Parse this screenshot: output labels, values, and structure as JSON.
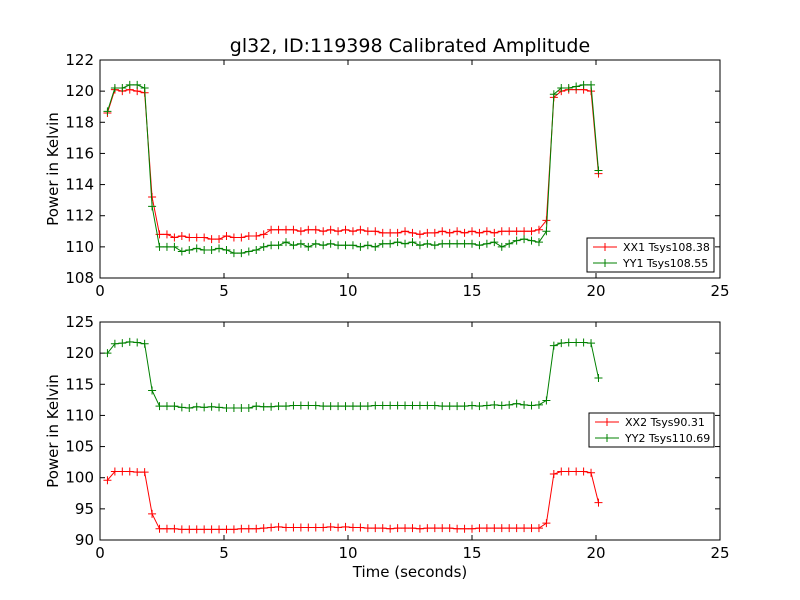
{
  "figure": {
    "title": "gl32, ID:119398 Calibrated Amplitude"
  },
  "chart_data": [
    {
      "type": "line",
      "title": "gl32, ID:119398 Calibrated Amplitude",
      "xlabel": "",
      "ylabel": "Power in Kelvin",
      "xlim": [
        0,
        25
      ],
      "ylim": [
        108,
        122
      ],
      "xticks": [
        0,
        5,
        10,
        15,
        20,
        25
      ],
      "yticks": [
        108,
        110,
        112,
        114,
        116,
        118,
        120,
        122
      ],
      "grid": false,
      "legend_position": "lower-right",
      "x": [
        0.3,
        0.6,
        0.9,
        1.2,
        1.5,
        1.8,
        2.1,
        2.4,
        2.7,
        3.0,
        3.3,
        3.6,
        3.9,
        4.2,
        4.5,
        4.8,
        5.1,
        5.4,
        5.7,
        6.0,
        6.3,
        6.6,
        6.9,
        7.2,
        7.5,
        7.8,
        8.1,
        8.4,
        8.7,
        9.0,
        9.3,
        9.6,
        9.9,
        10.2,
        10.5,
        10.8,
        11.1,
        11.4,
        11.7,
        12.0,
        12.3,
        12.6,
        12.9,
        13.2,
        13.5,
        13.8,
        14.1,
        14.4,
        14.7,
        15.0,
        15.3,
        15.6,
        15.9,
        16.2,
        16.5,
        16.8,
        17.1,
        17.4,
        17.7,
        18.0,
        18.3,
        18.6,
        18.9,
        19.2,
        19.5,
        19.8,
        20.1
      ],
      "series": [
        {
          "name": "XX1 Tsys108.38",
          "color": "#ff0000",
          "values": [
            118.6,
            120.1,
            120.0,
            120.1,
            120.0,
            119.9,
            113.2,
            110.8,
            110.8,
            110.6,
            110.7,
            110.6,
            110.6,
            110.6,
            110.5,
            110.5,
            110.7,
            110.6,
            110.6,
            110.7,
            110.7,
            110.8,
            111.1,
            111.1,
            111.1,
            111.1,
            111.0,
            111.1,
            111.1,
            111.0,
            111.1,
            111.0,
            111.1,
            111.0,
            111.1,
            111.0,
            111.0,
            110.9,
            110.9,
            110.9,
            111.0,
            110.9,
            110.8,
            110.9,
            110.9,
            111.0,
            110.9,
            111.0,
            110.9,
            111.0,
            110.9,
            111.0,
            110.9,
            111.0,
            111.0,
            111.0,
            111.0,
            111.0,
            111.1,
            111.7,
            119.6,
            120.0,
            120.1,
            120.1,
            120.1,
            120.0,
            114.7
          ]
        },
        {
          "name": "YY1 Tsys108.55",
          "color": "#008000",
          "values": [
            118.7,
            120.2,
            120.2,
            120.4,
            120.4,
            120.2,
            112.6,
            110.0,
            110.0,
            110.0,
            109.7,
            109.8,
            109.9,
            109.8,
            109.8,
            109.9,
            109.8,
            109.6,
            109.6,
            109.7,
            109.8,
            110.0,
            110.1,
            110.1,
            110.3,
            110.1,
            110.2,
            110.0,
            110.2,
            110.1,
            110.2,
            110.1,
            110.1,
            110.1,
            110.0,
            110.1,
            110.0,
            110.2,
            110.2,
            110.3,
            110.2,
            110.3,
            110.1,
            110.2,
            110.1,
            110.2,
            110.2,
            110.2,
            110.2,
            110.2,
            110.1,
            110.2,
            110.3,
            110.0,
            110.2,
            110.4,
            110.5,
            110.4,
            110.3,
            111.0,
            119.8,
            120.2,
            120.2,
            120.3,
            120.4,
            120.4,
            114.9
          ]
        }
      ]
    },
    {
      "type": "line",
      "title": "",
      "xlabel": "Time (seconds)",
      "ylabel": "Power in Kelvin",
      "xlim": [
        0,
        25
      ],
      "ylim": [
        90,
        125
      ],
      "xticks": [
        0,
        5,
        10,
        15,
        20,
        25
      ],
      "yticks": [
        90,
        95,
        100,
        105,
        110,
        115,
        120,
        125
      ],
      "grid": false,
      "legend_position": "center-right",
      "x": [
        0.3,
        0.6,
        0.9,
        1.2,
        1.5,
        1.8,
        2.1,
        2.4,
        2.7,
        3.0,
        3.3,
        3.6,
        3.9,
        4.2,
        4.5,
        4.8,
        5.1,
        5.4,
        5.7,
        6.0,
        6.3,
        6.6,
        6.9,
        7.2,
        7.5,
        7.8,
        8.1,
        8.4,
        8.7,
        9.0,
        9.3,
        9.6,
        9.9,
        10.2,
        10.5,
        10.8,
        11.1,
        11.4,
        11.7,
        12.0,
        12.3,
        12.6,
        12.9,
        13.2,
        13.5,
        13.8,
        14.1,
        14.4,
        14.7,
        15.0,
        15.3,
        15.6,
        15.9,
        16.2,
        16.5,
        16.8,
        17.1,
        17.4,
        17.7,
        18.0,
        18.3,
        18.6,
        18.9,
        19.2,
        19.5,
        19.8,
        20.1
      ],
      "series": [
        {
          "name": "XX2 Tsys90.31",
          "color": "#ff0000",
          "values": [
            99.6,
            101.0,
            101.0,
            101.0,
            100.9,
            100.9,
            94.2,
            91.8,
            91.8,
            91.8,
            91.7,
            91.7,
            91.7,
            91.7,
            91.7,
            91.7,
            91.7,
            91.7,
            91.8,
            91.8,
            91.8,
            91.9,
            92.0,
            92.1,
            92.0,
            92.0,
            92.0,
            92.0,
            92.0,
            92.0,
            92.1,
            92.0,
            92.1,
            92.0,
            92.0,
            91.9,
            91.9,
            91.9,
            91.8,
            91.9,
            91.9,
            91.9,
            91.8,
            91.9,
            91.9,
            91.9,
            91.9,
            91.8,
            91.8,
            91.8,
            91.9,
            91.9,
            91.9,
            91.9,
            91.9,
            91.9,
            91.9,
            91.9,
            91.9,
            92.7,
            100.6,
            101.0,
            101.0,
            101.0,
            101.0,
            100.8,
            96.0
          ]
        },
        {
          "name": "YY2 Tsys110.69",
          "color": "#008000",
          "values": [
            120.0,
            121.5,
            121.6,
            121.8,
            121.7,
            121.5,
            114.0,
            111.5,
            111.5,
            111.5,
            111.3,
            111.2,
            111.4,
            111.3,
            111.4,
            111.3,
            111.2,
            111.2,
            111.2,
            111.2,
            111.5,
            111.4,
            111.4,
            111.5,
            111.5,
            111.6,
            111.6,
            111.6,
            111.6,
            111.5,
            111.5,
            111.5,
            111.5,
            111.5,
            111.5,
            111.5,
            111.6,
            111.6,
            111.6,
            111.6,
            111.6,
            111.6,
            111.6,
            111.6,
            111.6,
            111.5,
            111.5,
            111.5,
            111.5,
            111.6,
            111.5,
            111.6,
            111.7,
            111.6,
            111.7,
            111.9,
            111.7,
            111.6,
            111.7,
            112.4,
            121.2,
            121.6,
            121.7,
            121.7,
            121.7,
            121.6,
            116.0
          ]
        }
      ]
    }
  ]
}
